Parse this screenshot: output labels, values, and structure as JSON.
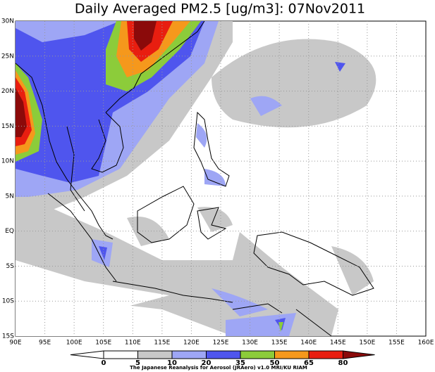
{
  "title": "Daily Averaged PM2.5 [ug/m3]: 07Nov2011",
  "lon_labels": [
    "90E",
    "95E",
    "100E",
    "105E",
    "110E",
    "115E",
    "120E",
    "125E",
    "130E",
    "135E",
    "140E",
    "145E",
    "150E",
    "155E",
    "160E"
  ],
  "lat_labels": [
    "30N",
    "25N",
    "20N",
    "15N",
    "10N",
    "5N",
    "EQ",
    "5S",
    "10S",
    "15S"
  ],
  "colorbar_levels": [
    0,
    5,
    10,
    20,
    35,
    50,
    65,
    80
  ],
  "credit": "The Japanese Reanalysis for Aerosol (JRAero) v1.0 MRI/KU RIAM"
}
